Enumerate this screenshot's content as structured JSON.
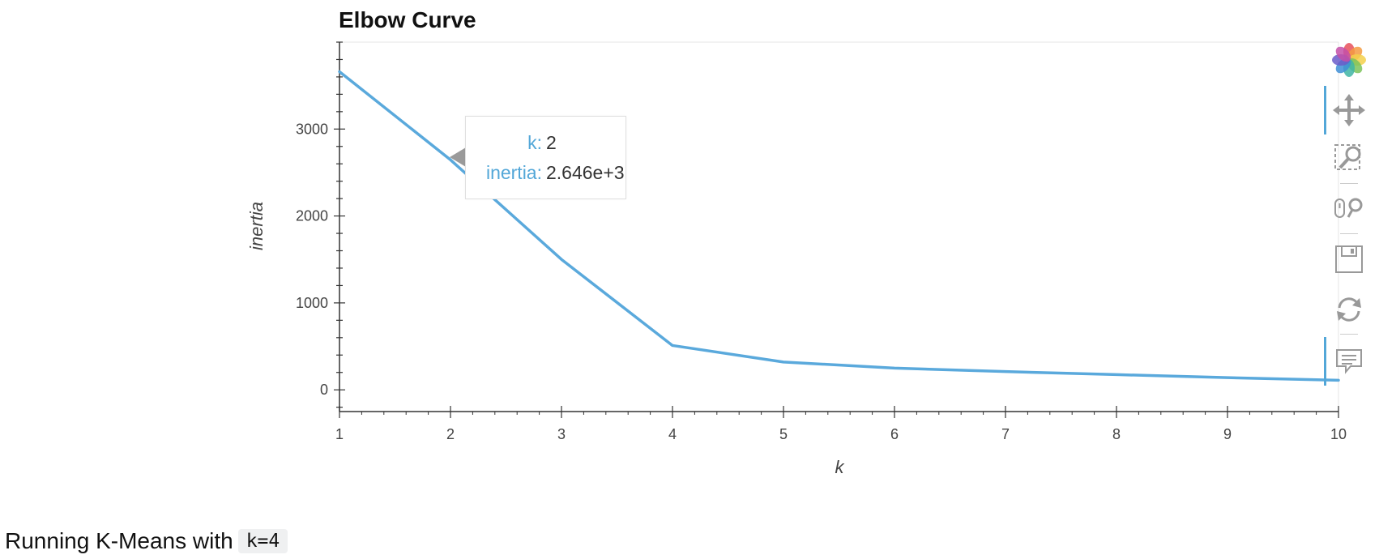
{
  "chart_data": {
    "type": "line",
    "title": "Elbow Curve",
    "xlabel": "k",
    "ylabel": "inertia",
    "x": [
      1,
      2,
      3,
      4,
      5,
      6,
      7,
      8,
      9,
      10
    ],
    "series": [
      {
        "values": [
          3660,
          2646,
          1500,
          510,
          320,
          250,
          210,
          175,
          140,
          110
        ]
      }
    ],
    "xlim": [
      1,
      10
    ],
    "ylim": [
      -250,
      4000
    ],
    "xticks": [
      "1",
      "2",
      "3",
      "4",
      "5",
      "6",
      "7",
      "8",
      "9",
      "10"
    ],
    "yticks": [
      "0",
      "1000",
      "2000",
      "3000"
    ],
    "ytick_values": [
      0,
      1000,
      2000,
      3000
    ],
    "line_color": "#5aa9dc",
    "grid": false,
    "legend": "none"
  },
  "tooltip": {
    "k_label": "k:",
    "k_value": "2",
    "inertia_label": "inertia:",
    "inertia_value": "2.646e+3"
  },
  "toolbar": {
    "tools": [
      "bokeh-logo",
      "pan-icon",
      "box-zoom-icon",
      "wheel-zoom-icon",
      "save-icon",
      "reset-icon",
      "hover-icon"
    ]
  },
  "caption": {
    "text": "Running K-Means with",
    "code": "k=4"
  }
}
